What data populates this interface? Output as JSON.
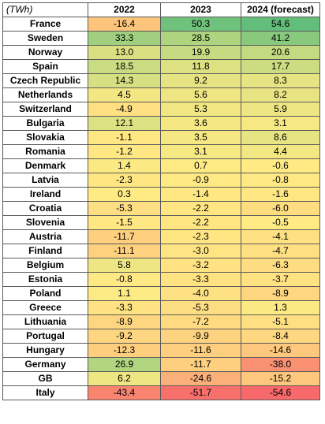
{
  "chart_data": {
    "type": "heatmap",
    "unit_label": "(TWh)",
    "columns": [
      "2022",
      "2023",
      "2024 (forecast)"
    ],
    "rows": [
      {
        "country": "France",
        "values": [
          -16.4,
          50.3,
          54.6
        ]
      },
      {
        "country": "Sweden",
        "values": [
          33.3,
          28.5,
          41.2
        ]
      },
      {
        "country": "Norway",
        "values": [
          13.0,
          19.9,
          20.6
        ]
      },
      {
        "country": "Spain",
        "values": [
          18.5,
          11.8,
          17.7
        ]
      },
      {
        "country": "Czech Republic",
        "values": [
          14.3,
          9.2,
          8.3
        ]
      },
      {
        "country": "Netherlands",
        "values": [
          4.5,
          5.6,
          8.2
        ]
      },
      {
        "country": "Switzerland",
        "values": [
          -4.9,
          5.3,
          5.9
        ]
      },
      {
        "country": "Bulgaria",
        "values": [
          12.1,
          3.6,
          3.1
        ]
      },
      {
        "country": "Slovakia",
        "values": [
          -1.1,
          3.5,
          8.6
        ]
      },
      {
        "country": "Romania",
        "values": [
          -1.2,
          3.1,
          4.4
        ]
      },
      {
        "country": "Denmark",
        "values": [
          1.4,
          0.7,
          -0.6
        ]
      },
      {
        "country": "Latvia",
        "values": [
          -2.3,
          -0.9,
          -0.8
        ]
      },
      {
        "country": "Ireland",
        "values": [
          0.3,
          -1.4,
          -1.6
        ]
      },
      {
        "country": "Croatia",
        "values": [
          -5.3,
          -2.2,
          -6.0
        ]
      },
      {
        "country": "Slovenia",
        "values": [
          -1.5,
          -2.2,
          -0.5
        ]
      },
      {
        "country": "Austria",
        "values": [
          -11.7,
          -2.3,
          -4.1
        ]
      },
      {
        "country": "Finland",
        "values": [
          -11.1,
          -3.0,
          -4.7
        ]
      },
      {
        "country": "Belgium",
        "values": [
          5.8,
          -3.2,
          -6.3
        ]
      },
      {
        "country": "Estonia",
        "values": [
          -0.8,
          -3.3,
          -3.7
        ]
      },
      {
        "country": "Poland",
        "values": [
          1.1,
          -4.0,
          -8.9
        ]
      },
      {
        "country": "Greece",
        "values": [
          -3.3,
          -5.3,
          1.3
        ]
      },
      {
        "country": "Lithuania",
        "values": [
          -8.9,
          -7.2,
          -5.1
        ]
      },
      {
        "country": "Portugal",
        "values": [
          -9.2,
          -9.9,
          -8.4
        ]
      },
      {
        "country": "Hungary",
        "values": [
          -12.3,
          -11.6,
          -14.6
        ]
      },
      {
        "country": "Germany",
        "values": [
          26.9,
          -11.7,
          -38.0
        ]
      },
      {
        "country": "GB",
        "values": [
          6.2,
          -24.6,
          -15.2
        ]
      },
      {
        "country": "Italy",
        "values": [
          -43.4,
          -51.7,
          -54.6
        ]
      }
    ],
    "color_scale": {
      "low": "#f8696b",
      "mid": "#ffeb84",
      "high": "#63be7b"
    }
  }
}
